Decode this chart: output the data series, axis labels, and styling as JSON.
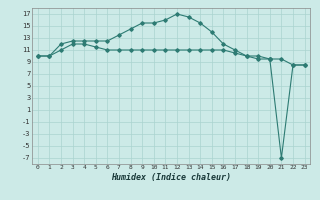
{
  "xlabel": "Humidex (Indice chaleur)",
  "background_color": "#cceae7",
  "grid_color": "#aad4d0",
  "line_color": "#2d7b73",
  "x_values": [
    0,
    1,
    2,
    3,
    4,
    5,
    6,
    7,
    8,
    9,
    10,
    11,
    12,
    13,
    14,
    15,
    16,
    17,
    18,
    19,
    20,
    21,
    22,
    23
  ],
  "line1_y": [
    10,
    10,
    11,
    12,
    12,
    11.5,
    11,
    11,
    11,
    11,
    11,
    11,
    11,
    11,
    11,
    11,
    11,
    10.5,
    10,
    10,
    9.5,
    9.5,
    8.5,
    8.5
  ],
  "line2_y": [
    10,
    10,
    12,
    12.5,
    12.5,
    12.5,
    12.5,
    13.5,
    14.5,
    15.5,
    15.5,
    16,
    17,
    16.5,
    15.5,
    14,
    12,
    11,
    10,
    9.5,
    9.5,
    null,
    null,
    null
  ],
  "line3_y": [
    null,
    null,
    null,
    null,
    null,
    null,
    null,
    null,
    null,
    null,
    null,
    null,
    null,
    null,
    null,
    null,
    null,
    null,
    null,
    null,
    9.5,
    -7,
    8.5,
    8.5
  ],
  "xlim": [
    -0.5,
    23.5
  ],
  "ylim": [
    -8,
    18
  ],
  "yticks": [
    -7,
    -5,
    -3,
    -1,
    1,
    3,
    5,
    7,
    9,
    11,
    13,
    15,
    17
  ],
  "xticks": [
    0,
    1,
    2,
    3,
    4,
    5,
    6,
    7,
    8,
    9,
    10,
    11,
    12,
    13,
    14,
    15,
    16,
    17,
    18,
    19,
    20,
    21,
    22,
    23
  ]
}
